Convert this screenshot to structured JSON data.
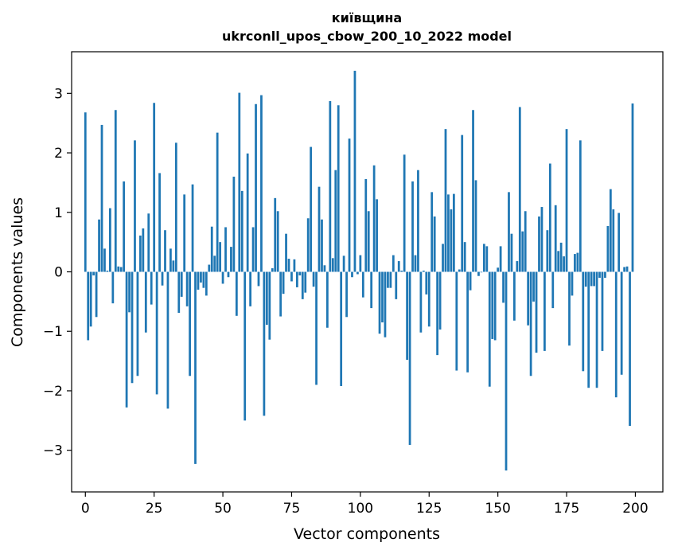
{
  "chart_data": {
    "type": "bar",
    "title": "київщина",
    "subtitle": "ukrconll_upos_cbow_200_10_2022 model",
    "xlabel": "Vector components",
    "ylabel": "Components values",
    "xlim": [
      -5,
      210
    ],
    "ylim": [
      -3.7,
      3.7
    ],
    "xticks": [
      0,
      25,
      50,
      75,
      100,
      125,
      150,
      175,
      200
    ],
    "yticks": [
      -3,
      -2,
      -1,
      0,
      1,
      2,
      3
    ],
    "grid": false,
    "bar_color": "#1f77b4",
    "x": [
      0,
      1,
      2,
      3,
      4,
      5,
      6,
      7,
      8,
      9,
      10,
      11,
      12,
      13,
      14,
      15,
      16,
      17,
      18,
      19,
      20,
      21,
      22,
      23,
      24,
      25,
      26,
      27,
      28,
      29,
      30,
      31,
      32,
      33,
      34,
      35,
      36,
      37,
      38,
      39,
      40,
      41,
      42,
      43,
      44,
      45,
      46,
      47,
      48,
      49,
      50,
      51,
      52,
      53,
      54,
      55,
      56,
      57,
      58,
      59,
      60,
      61,
      62,
      63,
      64,
      65,
      66,
      67,
      68,
      69,
      70,
      71,
      72,
      73,
      74,
      75,
      76,
      77,
      78,
      79,
      80,
      81,
      82,
      83,
      84,
      85,
      86,
      87,
      88,
      89,
      90,
      91,
      92,
      93,
      94,
      95,
      96,
      97,
      98,
      99,
      100,
      101,
      102,
      103,
      104,
      105,
      106,
      107,
      108,
      109,
      110,
      111,
      112,
      113,
      114,
      115,
      116,
      117,
      118,
      119,
      120,
      121,
      122,
      123,
      124,
      125,
      126,
      127,
      128,
      129,
      130,
      131,
      132,
      133,
      134,
      135,
      136,
      137,
      138,
      139,
      140,
      141,
      142,
      143,
      144,
      145,
      146,
      147,
      148,
      149,
      150,
      151,
      152,
      153,
      154,
      155,
      156,
      157,
      158,
      159,
      160,
      161,
      162,
      163,
      164,
      165,
      166,
      167,
      168,
      169,
      170,
      171,
      172,
      173,
      174,
      175,
      176,
      177,
      178,
      179,
      180,
      181,
      182,
      183,
      184,
      185,
      186,
      187,
      188,
      189,
      190,
      191,
      192,
      193,
      194,
      195,
      196,
      197,
      198,
      199
    ],
    "values": [
      2.68,
      -1.15,
      -0.92,
      -0.06,
      -0.76,
      0.88,
      2.47,
      0.39,
      0.02,
      1.07,
      -0.53,
      2.72,
      0.09,
      0.08,
      1.52,
      -2.28,
      -0.68,
      -1.87,
      2.21,
      -1.75,
      0.61,
      0.73,
      -1.02,
      0.98,
      -0.55,
      2.84,
      -2.06,
      1.66,
      -0.23,
      0.7,
      -2.3,
      0.39,
      0.19,
      2.17,
      -0.69,
      -0.42,
      1.3,
      -0.58,
      -1.75,
      1.47,
      -3.23,
      -0.3,
      -0.18,
      -0.27,
      -0.4,
      0.12,
      0.76,
      0.27,
      2.34,
      0.5,
      -0.2,
      0.75,
      -0.09,
      0.42,
      1.6,
      -0.74,
      3.01,
      1.36,
      -2.5,
      1.99,
      -0.58,
      0.75,
      2.82,
      -0.24,
      2.97,
      -2.42,
      -0.89,
      -1.14,
      0.06,
      1.24,
      1.02,
      -0.75,
      -0.37,
      0.64,
      0.22,
      -0.16,
      0.21,
      -0.26,
      -0.06,
      -0.46,
      -0.35,
      0.9,
      2.1,
      -0.25,
      -1.9,
      1.43,
      0.88,
      0.11,
      -0.94,
      2.87,
      0.23,
      1.71,
      2.8,
      -1.92,
      0.27,
      -0.76,
      2.24,
      -0.09,
      3.38,
      -0.04,
      0.28,
      -0.43,
      1.56,
      1.02,
      -0.61,
      1.79,
      1.22,
      -1.04,
      -0.85,
      -1.1,
      -0.27,
      -0.27,
      0.28,
      -0.46,
      0.18,
      0.02,
      1.97,
      -1.48,
      -2.91,
      1.52,
      0.28,
      1.71,
      -1.02,
      0.02,
      -0.38,
      -0.92,
      1.34,
      0.93,
      -1.4,
      -0.97,
      0.47,
      2.4,
      1.3,
      1.05,
      1.31,
      -1.66,
      0.04,
      2.3,
      0.5,
      -1.69,
      -0.31,
      2.72,
      1.54,
      -0.07,
      -0.01,
      0.47,
      0.43,
      -1.93,
      -1.13,
      -1.15,
      0.07,
      0.43,
      -0.52,
      -3.34,
      1.34,
      0.64,
      -0.82,
      0.18,
      2.77,
      0.68,
      1.02,
      -0.9,
      -1.75,
      -0.5,
      -1.36,
      0.93,
      1.09,
      -1.33,
      0.7,
      1.82,
      -0.61,
      1.12,
      0.35,
      0.49,
      0.26,
      2.4,
      -1.24,
      -0.4,
      0.3,
      0.32,
      2.21,
      -1.67,
      -0.25,
      -1.95,
      -0.24,
      -0.24,
      -1.95,
      -0.1,
      -1.33,
      -0.1,
      0.77,
      1.39,
      1.05,
      -2.11,
      0.99,
      -1.73,
      0.08,
      0.09,
      -2.59,
      2.83
    ]
  }
}
